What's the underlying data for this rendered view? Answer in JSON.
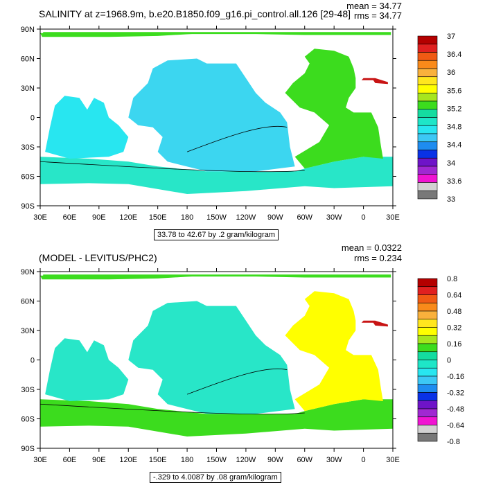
{
  "panels": [
    {
      "title": "SALINITY at z=1968.9m, b.e20.B1850.f09_g16.pi_control.all.126 [29-48]",
      "mean": "mean = 34.77",
      "rms": "rms = 34.77",
      "note": "33.78 to 42.67 by .2 gram/kilogram",
      "colorbar": {
        "labels": [
          "37",
          "36.4",
          "36",
          "35.6",
          "35.2",
          "34.8",
          "34.4",
          "34",
          "33.6",
          "33"
        ],
        "colors": [
          "#b40000",
          "#e02020",
          "#f05a14",
          "#f98a1a",
          "#f9b13c",
          "#ffe61e",
          "#ffff00",
          "#a6e61e",
          "#3cdc1e",
          "#14dca0",
          "#1ee6c8",
          "#28e6f0",
          "#3cc8f5",
          "#1e8cf0",
          "#0a32e6",
          "#6e14c8",
          "#a028d2",
          "#f014d2",
          "#d2d2d2",
          "#787878"
        ]
      },
      "ocean_colors": {
        "pacific": "#3cd6f0",
        "atlantic": "#3cdc1e",
        "southern": "#28e6c8",
        "arctic": "#3cdc1e",
        "med": "#c81414",
        "indian": "#28e6f0"
      }
    },
    {
      "title": "(MODEL - LEVITUS/PHC2)",
      "mean": "mean = 0.0322",
      "rms": "rms = 0.234",
      "note": "-.329 to 4.0087 by .08 gram/kilogram",
      "colorbar": {
        "labels": [
          "0.8",
          "0.64",
          "0.48",
          "0.32",
          "0.16",
          "0",
          "-0.16",
          "-0.32",
          "-0.48",
          "-0.64",
          "-0.8"
        ],
        "colors": [
          "#b40000",
          "#e02020",
          "#f05a14",
          "#f98a1a",
          "#f9b13c",
          "#ffe61e",
          "#ffff00",
          "#a6e61e",
          "#3cdc1e",
          "#14dca0",
          "#1ee6c8",
          "#28e6f0",
          "#3cc8f5",
          "#1e8cf0",
          "#0a32e6",
          "#6e14c8",
          "#a028d2",
          "#f014d2",
          "#d2d2d2",
          "#787878"
        ]
      },
      "ocean_colors": {
        "pacific": "#28e6c8",
        "atlantic": "#ffff00",
        "southern": "#3cdc1e",
        "arctic": "#3cdc1e",
        "med": "#c81414",
        "indian": "#28e6c8"
      }
    }
  ],
  "axes": {
    "lat_labels": [
      "90N",
      "60N",
      "30N",
      "0",
      "30S",
      "60S",
      "90S"
    ],
    "lon_labels": [
      "30E",
      "60E",
      "90E",
      "120E",
      "150E",
      "180",
      "150W",
      "120W",
      "90W",
      "60W",
      "30W",
      "0",
      "30E"
    ]
  }
}
